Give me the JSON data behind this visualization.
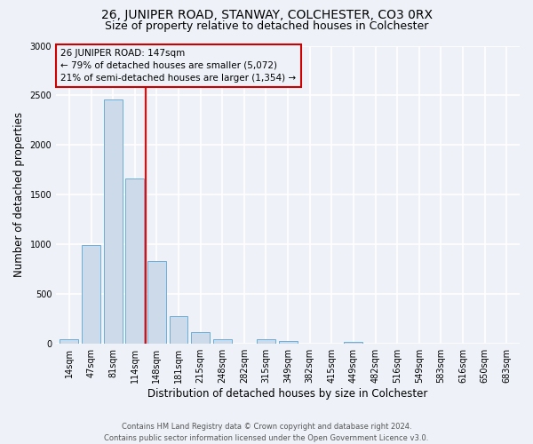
{
  "title": "26, JUNIPER ROAD, STANWAY, COLCHESTER, CO3 0RX",
  "subtitle": "Size of property relative to detached houses in Colchester",
  "xlabel": "Distribution of detached houses by size in Colchester",
  "ylabel": "Number of detached properties",
  "bar_labels": [
    "14sqm",
    "47sqm",
    "81sqm",
    "114sqm",
    "148sqm",
    "181sqm",
    "215sqm",
    "248sqm",
    "282sqm",
    "315sqm",
    "349sqm",
    "382sqm",
    "415sqm",
    "449sqm",
    "482sqm",
    "516sqm",
    "549sqm",
    "583sqm",
    "616sqm",
    "650sqm",
    "683sqm"
  ],
  "bar_values": [
    50,
    990,
    2460,
    1660,
    830,
    275,
    120,
    50,
    5,
    50,
    30,
    5,
    5,
    20,
    5,
    0,
    0,
    0,
    0,
    0,
    0
  ],
  "bar_color": "#cddaea",
  "bar_edgecolor": "#6aaed6",
  "property_line_label": "26 JUNIPER ROAD: 147sqm",
  "annotation_line1": "← 79% of detached houses are smaller (5,072)",
  "annotation_line2": "21% of semi-detached houses are larger (1,354) →",
  "annotation_box_color": "#cc0000",
  "ylim": [
    0,
    3000
  ],
  "yticks": [
    0,
    500,
    1000,
    1500,
    2000,
    2500,
    3000
  ],
  "footnote1": "Contains HM Land Registry data © Crown copyright and database right 2024.",
  "footnote2": "Contains public sector information licensed under the Open Government Licence v3.0.",
  "background_color": "#eef2f8",
  "grid_color": "#ffffff",
  "title_fontsize": 10,
  "subtitle_fontsize": 9,
  "axis_label_fontsize": 8.5,
  "tick_fontsize": 7,
  "footnote_fontsize": 6,
  "annot_fontsize": 7.5
}
